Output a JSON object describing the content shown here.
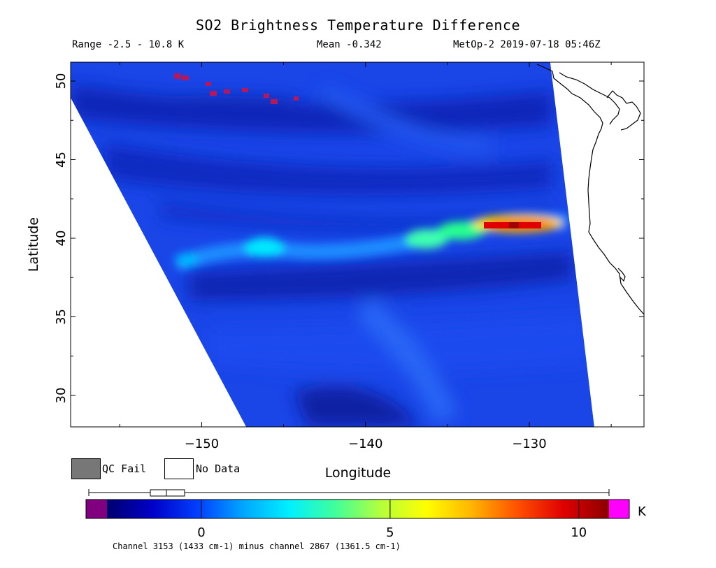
{
  "title": "SO2 Brightness Temperature Difference",
  "range_text": "Range -2.5 - 10.8 K",
  "mean_text": "Mean -0.342",
  "instrument_text": "MetOp-2 2019-07-18 05:46Z",
  "legend": {
    "qc_fail": "QC Fail",
    "no_data": "No Data",
    "qc_fail_color": "#777777",
    "no_data_color": "#ffffff"
  },
  "colorbar": {
    "unit": "K",
    "ticks": [
      "0",
      "5",
      "10"
    ],
    "tick_values": [
      0,
      5,
      10
    ],
    "min": -2.5,
    "max": 10.8,
    "under_color": "#800080",
    "over_color": "#ff00ff",
    "colors": [
      "#00006e",
      "#0000c8",
      "#0040ff",
      "#00a8ff",
      "#00f0ff",
      "#40ff9a",
      "#b4ff3c",
      "#ffff00",
      "#ffb400",
      "#ff5000",
      "#e00000",
      "#8b0000"
    ],
    "caption": "Channel 3153 (1433 cm-1) minus channel 2867 (1361.5 cm-1)"
  },
  "chart_data": {
    "type": "heatmap",
    "title": "SO2 Brightness Temperature Difference",
    "xlabel": "Longitude",
    "ylabel": "Latitude",
    "xlim": [
      -158,
      -123
    ],
    "ylim": [
      28,
      51.2
    ],
    "x_ticks": [
      -150,
      -140,
      -130
    ],
    "x_tick_labels": [
      "−150",
      "−140",
      "−130"
    ],
    "y_ticks": [
      30,
      35,
      40,
      45,
      50
    ],
    "y_tick_labels": [
      "30",
      "35",
      "40",
      "45",
      "50"
    ],
    "value_range": [
      -2.5,
      10.8
    ],
    "mean": -0.342,
    "unit": "K",
    "plume": {
      "peak_value": 10.8,
      "peak_location": [
        -129.3,
        40.9
      ],
      "path": [
        [
          -155.5,
          38.4
        ],
        [
          -145.5,
          39.6
        ],
        [
          -140,
          39.2
        ],
        [
          -136,
          39.6
        ],
        [
          -133,
          40.1
        ],
        [
          -130,
          40.8
        ],
        [
          -127,
          41.1
        ]
      ]
    },
    "swath_edge_west": [
      [
        -158,
        49.2
      ],
      [
        -147,
        28
      ]
    ],
    "swath_edge_east": [
      [
        -128,
        51.2
      ],
      [
        -124,
        28
      ]
    ]
  }
}
